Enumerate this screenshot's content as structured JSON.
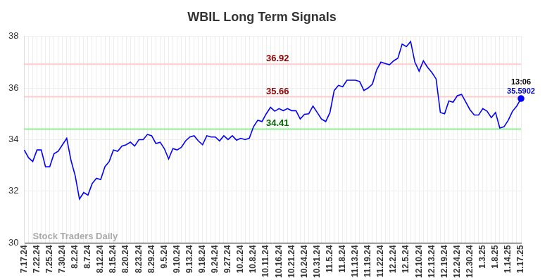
{
  "chart_data": {
    "type": "line",
    "title": "WBIL Long Term Signals",
    "color": "#0000ff",
    "grid": true,
    "ylim": [
      30,
      38
    ],
    "yticks": [
      30,
      32,
      34,
      36,
      38
    ],
    "categories": [
      "7.17.24",
      null,
      null,
      "7.22.24",
      null,
      null,
      "7.25.24",
      null,
      null,
      "7.30.24",
      null,
      null,
      "8.2.24",
      null,
      null,
      "8.7.24",
      null,
      null,
      "8.12.24",
      null,
      null,
      "8.15.24",
      null,
      null,
      "8.20.24",
      null,
      null,
      "8.23.24",
      null,
      null,
      "8.29.24",
      null,
      null,
      "9.5.24",
      null,
      null,
      "9.10.24",
      null,
      null,
      "9.13.24",
      null,
      null,
      "9.18.24",
      null,
      null,
      "9.24.24",
      null,
      null,
      "9.27.24",
      null,
      null,
      "10.2.24",
      null,
      null,
      "10.8.24",
      null,
      null,
      "10.11.24",
      null,
      null,
      "10.16.24",
      null,
      null,
      "10.21.24",
      null,
      null,
      "10.24.24",
      null,
      null,
      "10.31.24",
      null,
      null,
      "11.5.24",
      null,
      null,
      "11.8.24",
      null,
      null,
      "11.13.24",
      null,
      null,
      "11.19.24",
      null,
      null,
      "11.22.24",
      null,
      null,
      "12.2.24",
      null,
      null,
      "12.5.24",
      null,
      null,
      "12.10.24",
      null,
      null,
      "12.13.24",
      null,
      null,
      "12.19.24",
      null,
      null,
      "12.24.24",
      null,
      null,
      "12.30.24",
      null,
      null,
      "1.3.25",
      null,
      null,
      "1.8.25",
      null,
      null,
      "1.14.25",
      null,
      null,
      "1.17.25"
    ],
    "values": [
      33.6,
      33.3,
      33.15,
      33.6,
      33.6,
      32.95,
      32.95,
      33.45,
      33.55,
      33.8,
      34.05,
      33.2,
      32.6,
      31.7,
      31.95,
      31.85,
      32.3,
      32.5,
      32.45,
      32.95,
      33.15,
      33.6,
      33.55,
      33.75,
      33.8,
      33.9,
      33.75,
      34.0,
      34.0,
      34.2,
      34.15,
      33.85,
      33.9,
      33.65,
      33.25,
      33.65,
      33.6,
      33.7,
      33.95,
      34.1,
      34.15,
      33.95,
      33.8,
      34.15,
      34.1,
      34.1,
      33.95,
      34.15,
      34.0,
      34.15,
      33.98,
      34.05,
      34.0,
      34.05,
      34.5,
      34.75,
      34.7,
      35.0,
      35.25,
      35.1,
      35.2,
      35.12,
      35.2,
      35.12,
      35.12,
      34.8,
      34.98,
      35.0,
      35.3,
      35.05,
      34.8,
      34.7,
      35.05,
      35.9,
      36.1,
      36.05,
      36.3,
      36.3,
      36.3,
      36.25,
      35.9,
      36.0,
      36.15,
      36.7,
      37.0,
      36.95,
      36.9,
      37.05,
      37.15,
      37.7,
      37.6,
      37.8,
      37.0,
      36.65,
      37.05,
      36.8,
      36.6,
      36.35,
      35.05,
      35.0,
      35.5,
      35.45,
      35.7,
      35.75,
      35.45,
      35.15,
      34.95,
      34.95,
      35.2,
      35.1,
      34.85,
      35.05,
      34.45,
      34.5,
      34.75,
      35.1,
      35.3,
      35.5902
    ],
    "lines": [
      {
        "value": 36.92,
        "color": "#ffcccc",
        "text_color": "#8b0000"
      },
      {
        "value": 35.66,
        "color": "#ffcccc",
        "text_color": "#8b0000"
      },
      {
        "value": 34.41,
        "color": "#90ee90",
        "text_color": "#006400"
      }
    ],
    "last_point": {
      "time": "13:06"
    },
    "watermark": "Stock Traders Daily"
  }
}
